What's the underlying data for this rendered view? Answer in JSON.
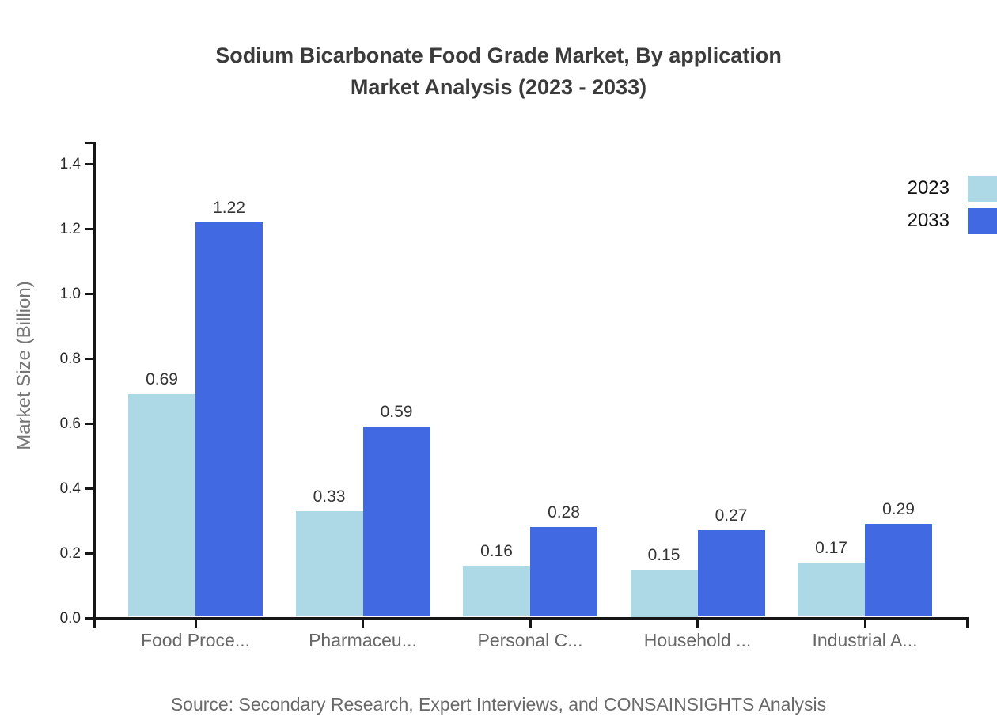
{
  "figure": {
    "title_line1": "Sodium Bicarbonate Food Grade Market, By application",
    "title_line2": "Market Analysis (2023 - 2033)",
    "source": "Source: Secondary Research, Expert Interviews, and CONSAINSIGHTS Analysis"
  },
  "chart_data": {
    "type": "bar",
    "title": "Sodium Bicarbonate Food Grade Market, By application Market Analysis (2023 - 2033)",
    "xlabel": "",
    "ylabel": "Market Size (Billion)",
    "categories": [
      "Food Proce...",
      "Pharmaceu...",
      "Personal C...",
      "Household ...",
      "Industrial A..."
    ],
    "series": [
      {
        "name": "2023",
        "color": "#ADD8E6",
        "values": [
          0.69,
          0.33,
          0.16,
          0.15,
          0.17
        ],
        "labels": [
          "0.69",
          "0.33",
          "0.16",
          "0.15",
          "0.17"
        ]
      },
      {
        "name": "2033",
        "color": "#4169E1",
        "values": [
          1.22,
          0.59,
          0.28,
          0.27,
          0.29
        ],
        "labels": [
          "1.22",
          "0.59",
          "0.28",
          "0.27",
          "0.29"
        ]
      }
    ],
    "ylim": [
      0,
      1.45
    ],
    "yticks": [
      {
        "value": 0.0,
        "label": "0.0"
      },
      {
        "value": 0.2,
        "label": "0.2"
      },
      {
        "value": 0.4,
        "label": "0.4"
      },
      {
        "value": 0.6,
        "label": "0.6"
      },
      {
        "value": 0.8,
        "label": "0.8"
      },
      {
        "value": 1.0,
        "label": "1.0"
      },
      {
        "value": 1.2,
        "label": "1.2"
      },
      {
        "value": 1.4,
        "label": "1.4"
      }
    ],
    "grid": false,
    "legend_position": "top-right"
  },
  "colors": {
    "axis": "#161616",
    "title": "#3b3b3b",
    "tick_label": "#262626",
    "category_label": "#666666",
    "value_label": "#333333",
    "axis_title": "#757575",
    "source": "#696969",
    "background": "#ffffff"
  }
}
